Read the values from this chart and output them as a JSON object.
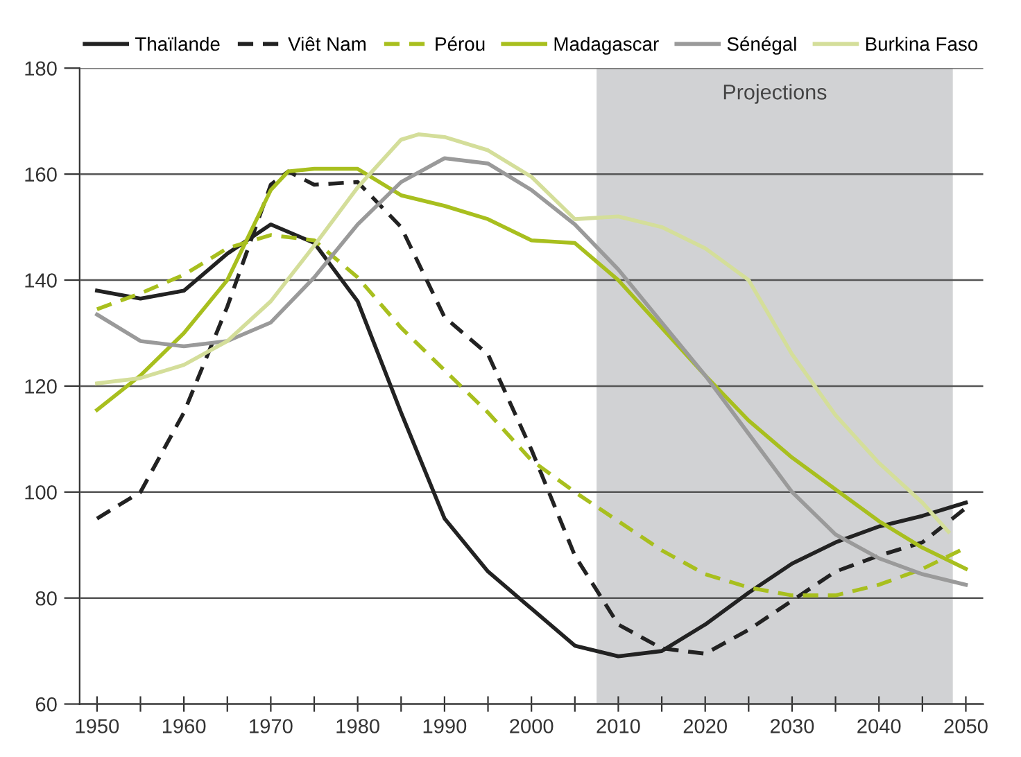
{
  "chart_data": {
    "type": "line",
    "legend": "top",
    "grid": "y",
    "marker": "none",
    "xlim": [
      1948,
      2052
    ],
    "xticks": [
      1950,
      {
        "value": 1955,
        "label": null
      },
      1960,
      {
        "value": 1965,
        "label": null
      },
      1970,
      {
        "value": 1975,
        "label": null
      },
      1980,
      {
        "value": 1985,
        "label": null
      },
      1990,
      {
        "value": 1995,
        "label": null
      },
      2000,
      {
        "value": 2005,
        "label": null
      },
      2010,
      {
        "value": 2015,
        "label": null
      },
      2020,
      {
        "value": 2025,
        "label": null
      },
      2030,
      {
        "value": 2035,
        "label": null
      },
      2040,
      {
        "value": 2045,
        "label": null
      },
      2050
    ],
    "ylim": [
      60,
      180
    ],
    "yticks": [
      60,
      80,
      100,
      120,
      140,
      160,
      180
    ],
    "bands": [
      {
        "axis": "x",
        "from": 2007.5,
        "to": 2048.5,
        "label": "Projections",
        "color": "#d1d2d4"
      }
    ],
    "series": [
      {
        "name": "Thaïlande",
        "color": "#222222",
        "line_style": "solid",
        "x": [
          1950,
          1955,
          1960,
          1965,
          1970,
          1975,
          1980,
          1985,
          1990,
          1995,
          2000,
          2005,
          2010,
          2015,
          2020,
          2025,
          2030,
          2035,
          2040,
          2045,
          2050
        ],
        "values": [
          138,
          136.5,
          138,
          145,
          150.5,
          147,
          136,
          115,
          95,
          85,
          78,
          71,
          69,
          70,
          75,
          81,
          86.5,
          90.5,
          93.5,
          95.5,
          98
        ]
      },
      {
        "name": "Viêt Nam",
        "color": "#222222",
        "line_style": "dashed",
        "x": [
          1950,
          1955,
          1960,
          1965,
          1970,
          1972,
          1975,
          1980,
          1985,
          1990,
          1995,
          2000,
          2005,
          2010,
          2015,
          2020,
          2025,
          2030,
          2035,
          2040,
          2045,
          2050
        ],
        "values": [
          95,
          100,
          115,
          135,
          158,
          160.5,
          158,
          158.5,
          150,
          133,
          126,
          108,
          88,
          75,
          70.5,
          69.5,
          74,
          79.5,
          85,
          88,
          90.5,
          97
        ]
      },
      {
        "name": "Pérou",
        "color": "#a8bf1e",
        "line_style": "dashed",
        "x": [
          1950,
          1955,
          1960,
          1965,
          1970,
          1975,
          1980,
          1985,
          1990,
          1995,
          2000,
          2005,
          2010,
          2015,
          2020,
          2025,
          2030,
          2035,
          2040,
          2045,
          2050
        ],
        "values": [
          134.5,
          137.5,
          141,
          146,
          148.5,
          147.5,
          140.5,
          131,
          123,
          115,
          106,
          100,
          94.5,
          89,
          84.5,
          82,
          80.5,
          80.5,
          82.5,
          85.5,
          89.5
        ]
      },
      {
        "name": "Madagascar",
        "color": "#a8bf1e",
        "line_style": "solid",
        "x": [
          1950,
          1955,
          1960,
          1965,
          1970,
          1972,
          1975,
          1980,
          1985,
          1990,
          1995,
          2000,
          2005,
          2010,
          2015,
          2020,
          2025,
          2030,
          2035,
          2040,
          2045,
          2050
        ],
        "values": [
          115.5,
          122,
          130,
          140,
          157,
          160.5,
          161,
          161,
          156,
          154,
          151.5,
          147.5,
          147,
          140,
          131,
          122,
          113.5,
          106.5,
          100.5,
          94.5,
          89.5,
          85.5
        ]
      },
      {
        "name": "Sénégal",
        "color": "#9a9a9a",
        "line_style": "solid",
        "x": [
          1950,
          1955,
          1960,
          1965,
          1970,
          1975,
          1980,
          1985,
          1990,
          1995,
          2000,
          2005,
          2010,
          2015,
          2020,
          2025,
          2030,
          2035,
          2040,
          2045,
          2050
        ],
        "values": [
          133.5,
          128.5,
          127.5,
          128.5,
          132,
          140.5,
          150.5,
          158.5,
          163,
          162,
          157,
          150.5,
          142,
          132,
          122,
          111,
          100,
          92,
          87.5,
          84.5,
          82.5
        ]
      },
      {
        "name": "Burkina Faso",
        "color": "#d4de9a",
        "line_style": "solid",
        "x": [
          1950,
          1955,
          1960,
          1965,
          1970,
          1975,
          1980,
          1985,
          1987,
          1990,
          1995,
          2000,
          2005,
          2010,
          2015,
          2020,
          2025,
          2030,
          2035,
          2040,
          2045,
          2048
        ],
        "values": [
          120.5,
          121.5,
          124,
          128.5,
          136,
          146.5,
          157.5,
          166.5,
          167.5,
          167,
          164.5,
          159.5,
          151.5,
          152,
          150,
          146,
          140,
          126,
          114.5,
          105.5,
          98,
          92.5
        ]
      }
    ]
  }
}
